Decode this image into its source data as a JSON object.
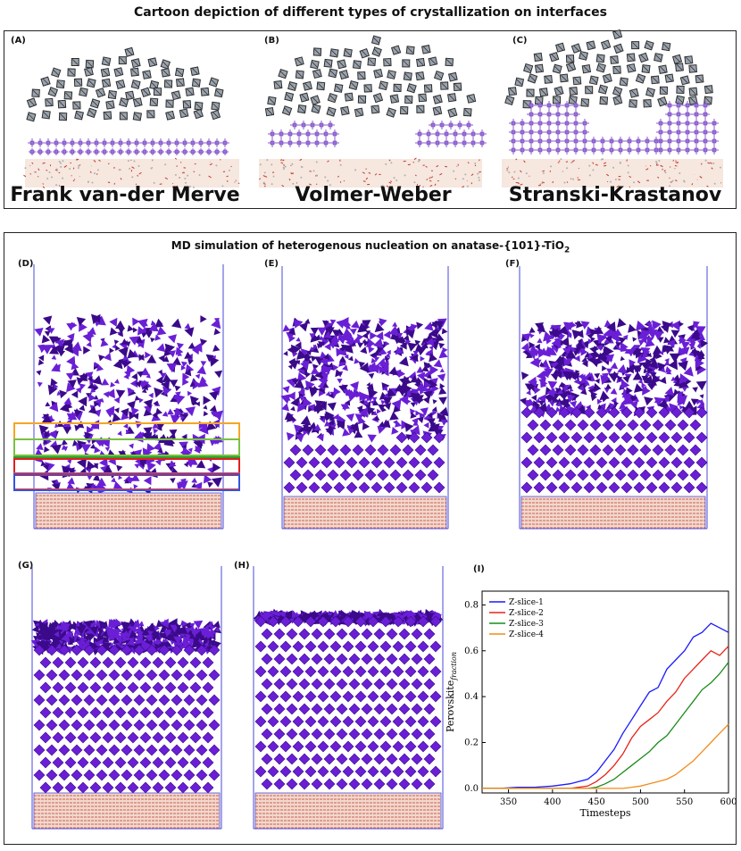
{
  "top": {
    "title": "Cartoon depiction of different types of crystallization on interfaces",
    "panels": [
      {
        "label": "(A)",
        "caption": "Frank van-der Merve"
      },
      {
        "label": "(B)",
        "caption": "Volmer-Weber"
      },
      {
        "label": "(C)",
        "caption": "Stranski-Krastanov"
      }
    ]
  },
  "bottom": {
    "title_main": "MD simulation of heterogenous nucleation on anatase-{101}-TiO",
    "title_sub": "2",
    "panel_labels": [
      "(D)",
      "(E)",
      "(F)",
      "(G)",
      "(H)",
      "(I)"
    ]
  },
  "colors": {
    "purple": "#6a1fd6",
    "dark_purple": "#3b0a8a",
    "substrate": "#c0392b",
    "box": "#4a4ad8"
  },
  "chart_data": {
    "type": "line",
    "title": "",
    "xlabel": "Timesteps",
    "ylabel": "Perovskite",
    "ylabel_sub": "fraction",
    "xlim": [
      320,
      600
    ],
    "ylim": [
      -0.02,
      0.86
    ],
    "xticks": [
      350,
      400,
      450,
      500,
      550,
      600
    ],
    "yticks": [
      0.0,
      0.2,
      0.4,
      0.6,
      0.8
    ],
    "ytick_labels": [
      "0.0",
      "0.2",
      "0.4",
      "0.6",
      "0.8"
    ],
    "legend_position": "top-left",
    "series": [
      {
        "name": "Z-slice-1",
        "color": "#1a1aff",
        "x": [
          320,
          340,
          360,
          380,
          400,
          420,
          440,
          450,
          460,
          470,
          480,
          490,
          500,
          510,
          520,
          530,
          540,
          550,
          560,
          570,
          580,
          590,
          600
        ],
        "y": [
          0.0,
          0.0,
          0.005,
          0.005,
          0.01,
          0.02,
          0.04,
          0.07,
          0.12,
          0.17,
          0.24,
          0.3,
          0.36,
          0.42,
          0.44,
          0.52,
          0.56,
          0.6,
          0.66,
          0.68,
          0.72,
          0.7,
          0.68
        ]
      },
      {
        "name": "Z-slice-2",
        "color": "#e8221b",
        "x": [
          320,
          340,
          360,
          380,
          400,
          420,
          440,
          450,
          460,
          470,
          480,
          490,
          500,
          510,
          520,
          530,
          540,
          550,
          560,
          570,
          580,
          590,
          600
        ],
        "y": [
          0.0,
          0.0,
          0.0,
          0.0,
          0.0,
          0.0,
          0.01,
          0.03,
          0.06,
          0.1,
          0.15,
          0.22,
          0.27,
          0.3,
          0.33,
          0.38,
          0.42,
          0.48,
          0.52,
          0.56,
          0.6,
          0.58,
          0.62
        ]
      },
      {
        "name": "Z-slice-3",
        "color": "#1a8a1a",
        "x": [
          320,
          340,
          360,
          380,
          400,
          420,
          440,
          450,
          460,
          470,
          480,
          490,
          500,
          510,
          520,
          530,
          540,
          550,
          560,
          570,
          580,
          590,
          600
        ],
        "y": [
          0.0,
          0.0,
          0.0,
          0.0,
          0.0,
          0.0,
          0.0,
          0.005,
          0.02,
          0.04,
          0.07,
          0.1,
          0.13,
          0.16,
          0.2,
          0.23,
          0.28,
          0.33,
          0.38,
          0.43,
          0.46,
          0.5,
          0.55
        ]
      },
      {
        "name": "Z-slice-4",
        "color": "#f28c1b",
        "x": [
          320,
          340,
          360,
          380,
          400,
          420,
          440,
          450,
          460,
          470,
          480,
          490,
          500,
          510,
          520,
          530,
          540,
          550,
          560,
          570,
          580,
          590,
          600
        ],
        "y": [
          0.0,
          0.0,
          0.0,
          0.0,
          0.0,
          0.0,
          0.0,
          0.0,
          0.0,
          0.0,
          0.0,
          0.005,
          0.01,
          0.02,
          0.03,
          0.04,
          0.06,
          0.09,
          0.12,
          0.16,
          0.2,
          0.24,
          0.28
        ]
      }
    ]
  }
}
